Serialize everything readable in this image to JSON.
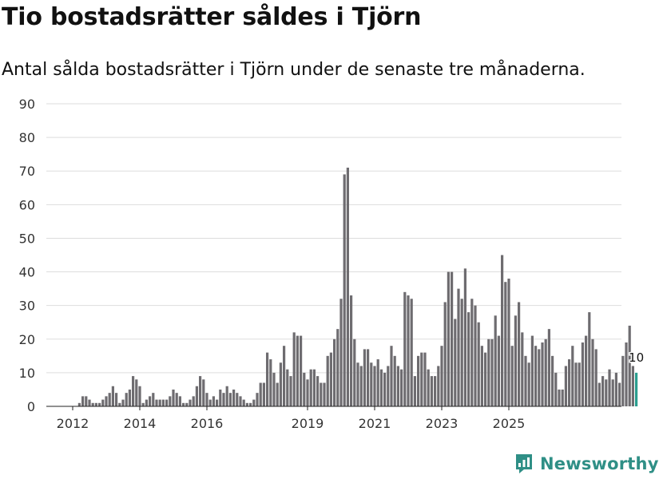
{
  "chart_data": {
    "type": "bar",
    "title": "Tio bostadsrätter såldes i Tjörn",
    "subtitle": "Antal sålda bostadsrätter i Tjörn under de senaste tre månaderna.",
    "xlabel": "",
    "ylabel": "",
    "ylim": [
      0,
      90
    ],
    "yticks": [
      0,
      10,
      20,
      30,
      40,
      50,
      60,
      70,
      80,
      90
    ],
    "xtick_labels": [
      "2012",
      "2014",
      "2016",
      "2019",
      "2021",
      "2023",
      "2025"
    ],
    "xtick_indices": [
      7,
      27,
      47,
      77,
      97,
      117,
      137
    ],
    "bar_color": "#6e6c70",
    "highlight_color": "#2a9d8f",
    "highlight_label": "10",
    "values": [
      0,
      0,
      0,
      0,
      0,
      0,
      0,
      0,
      0,
      1,
      3,
      3,
      2,
      1,
      1,
      1,
      2,
      3,
      4,
      6,
      4,
      1,
      2,
      4,
      5,
      9,
      8,
      6,
      1,
      2,
      3,
      4,
      2,
      2,
      2,
      2,
      3,
      5,
      4,
      3,
      1,
      1,
      2,
      3,
      6,
      9,
      8,
      4,
      2,
      3,
      2,
      5,
      4,
      6,
      4,
      5,
      4,
      3,
      2,
      1,
      1,
      2,
      4,
      7,
      7,
      16,
      14,
      10,
      7,
      13,
      18,
      11,
      9,
      22,
      21,
      21,
      10,
      8,
      11,
      11,
      9,
      7,
      7,
      15,
      16,
      20,
      23,
      32,
      69,
      71,
      33,
      20,
      13,
      12,
      17,
      17,
      13,
      12,
      14,
      11,
      10,
      12,
      18,
      15,
      12,
      11,
      34,
      33,
      32,
      9,
      15,
      16,
      16,
      11,
      9,
      9,
      12,
      18,
      31,
      40,
      40,
      26,
      35,
      32,
      41,
      28,
      32,
      30,
      25,
      18,
      16,
      20,
      20,
      27,
      21,
      45,
      37,
      38,
      18,
      27,
      31,
      22,
      15,
      13,
      21,
      18,
      17,
      19,
      20,
      23,
      15,
      10,
      5,
      5,
      12,
      14,
      18,
      13,
      13,
      19,
      21,
      28,
      20,
      17,
      7,
      9,
      8,
      11,
      8,
      10,
      7,
      15,
      19,
      24,
      12,
      10
    ]
  },
  "brand": {
    "name": "Newsworthy"
  }
}
